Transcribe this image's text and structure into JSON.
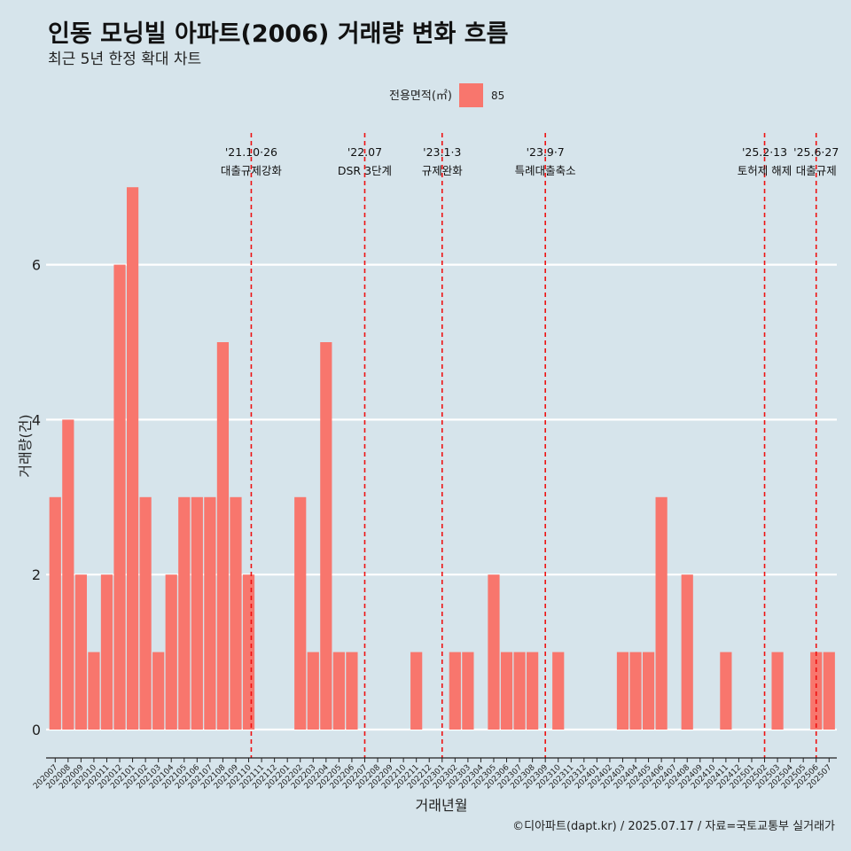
{
  "title": "인동 모닝빌 아파트(2006) 거래량 변화 흐름",
  "subtitle": "최근 5년 한정 확대 차트",
  "caption": "©디아파트(dapt.kr) / 2025.07.17 / 자료=국토교통부 실거래가",
  "colors": {
    "background": "#d6e4eb",
    "bar": "#f8766d",
    "event_line": "#ee1111"
  },
  "chart_data": {
    "type": "bar",
    "xlabel": "거래년월",
    "ylabel": "거래량(건)",
    "ylim": [
      0,
      7.5
    ],
    "yticks": [
      0,
      2,
      4,
      6
    ],
    "grid": true,
    "legend": {
      "title": "전용면적(㎡)",
      "position": "top",
      "entries": [
        "85"
      ]
    },
    "series": [
      {
        "name": "85"
      }
    ],
    "categories": [
      "202007",
      "202008",
      "202009",
      "202010",
      "202011",
      "202012",
      "202101",
      "202102",
      "202103",
      "202104",
      "202105",
      "202106",
      "202107",
      "202108",
      "202109",
      "202110",
      "202111",
      "202112",
      "202201",
      "202202",
      "202203",
      "202204",
      "202205",
      "202206",
      "202207",
      "202208",
      "202209",
      "202210",
      "202211",
      "202212",
      "202301",
      "202302",
      "202303",
      "202304",
      "202305",
      "202306",
      "202307",
      "202308",
      "202309",
      "202310",
      "202311",
      "202312",
      "202401",
      "202402",
      "202403",
      "202404",
      "202405",
      "202406",
      "202407",
      "202408",
      "202409",
      "202410",
      "202411",
      "202412",
      "202501",
      "202502",
      "202503",
      "202504",
      "202505",
      "202506",
      "202507"
    ],
    "values": [
      3,
      4,
      2,
      1,
      2,
      6,
      7,
      3,
      1,
      2,
      3,
      3,
      3,
      5,
      3,
      2,
      0,
      0,
      0,
      3,
      1,
      5,
      1,
      1,
      0,
      0,
      0,
      0,
      1,
      0,
      0,
      1,
      1,
      0,
      2,
      1,
      1,
      1,
      0,
      1,
      0,
      0,
      0,
      0,
      1,
      1,
      1,
      3,
      0,
      2,
      0,
      0,
      1,
      0,
      0,
      0,
      1,
      0,
      0,
      1,
      1
    ],
    "events": [
      {
        "date": "'21.10·26",
        "label": "대출규제강화",
        "at": "202110",
        "offset": 0.2
      },
      {
        "date": "'22.07",
        "label": "DSR 3단계",
        "at": "202207",
        "offset": 0.0
      },
      {
        "date": "'23.1·3",
        "label": "규제완화",
        "at": "202301",
        "offset": 0.0
      },
      {
        "date": "'23.9·7",
        "label": "특례대출축소",
        "at": "202309",
        "offset": 0.0
      },
      {
        "date": "'25.2·13",
        "label": "토허제 해제",
        "at": "202502",
        "offset": 0.0
      },
      {
        "date": "'25.6·27",
        "label": "대출규제",
        "at": "202506",
        "offset": 0.0
      }
    ]
  }
}
